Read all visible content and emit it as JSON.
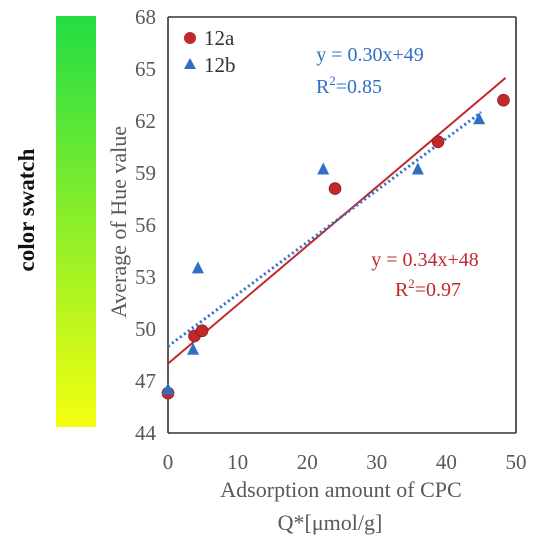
{
  "swatch": {
    "label": "color swatch",
    "color_top": "#22dd44",
    "color_bottom": "#f3ff10"
  },
  "chart_data": {
    "type": "scatter",
    "xlabel_line1": "Adsorption amount of CPC",
    "xlabel_line2": "Q*[μmol/g]",
    "ylabel": "Average of Hue value",
    "xlim": [
      0,
      50
    ],
    "ylim": [
      44,
      68
    ],
    "x_ticks": [
      0,
      10,
      20,
      30,
      40,
      50
    ],
    "y_ticks": [
      44,
      47,
      50,
      53,
      56,
      59,
      62,
      65,
      68
    ],
    "grid": false,
    "legend_position": "top-left",
    "series": [
      {
        "name": "12a",
        "marker": "circle",
        "color": "#c0282c",
        "points": [
          [
            0,
            46.3
          ],
          [
            3.8,
            49.6
          ],
          [
            4.9,
            49.9
          ],
          [
            24,
            58.1
          ],
          [
            38.8,
            60.8
          ],
          [
            48.2,
            63.2
          ]
        ],
        "trendline": {
          "style": "solid",
          "color": "#c0282c",
          "slope": 0.34,
          "intercept": 48,
          "x_range": [
            0,
            48.5
          ]
        },
        "equation": "y = 0.34x+48",
        "r2_prefix": "R",
        "r2_sup": "2",
        "r2_value": "=0.97"
      },
      {
        "name": "12b",
        "marker": "triangle",
        "color": "#2f6fc4",
        "points": [
          [
            0,
            46.5
          ],
          [
            3.6,
            48.8
          ],
          [
            4.3,
            53.5
          ],
          [
            22.3,
            59.2
          ],
          [
            35.9,
            59.2
          ],
          [
            44.7,
            62.1
          ]
        ],
        "trendline": {
          "style": "dotted",
          "color": "#2f6fc4",
          "slope": 0.3,
          "intercept": 49,
          "x_range": [
            0,
            45
          ]
        },
        "equation": "y = 0.30x+49",
        "r2_prefix": "R",
        "r2_sup": "2",
        "r2_value": "=0.85"
      }
    ]
  }
}
